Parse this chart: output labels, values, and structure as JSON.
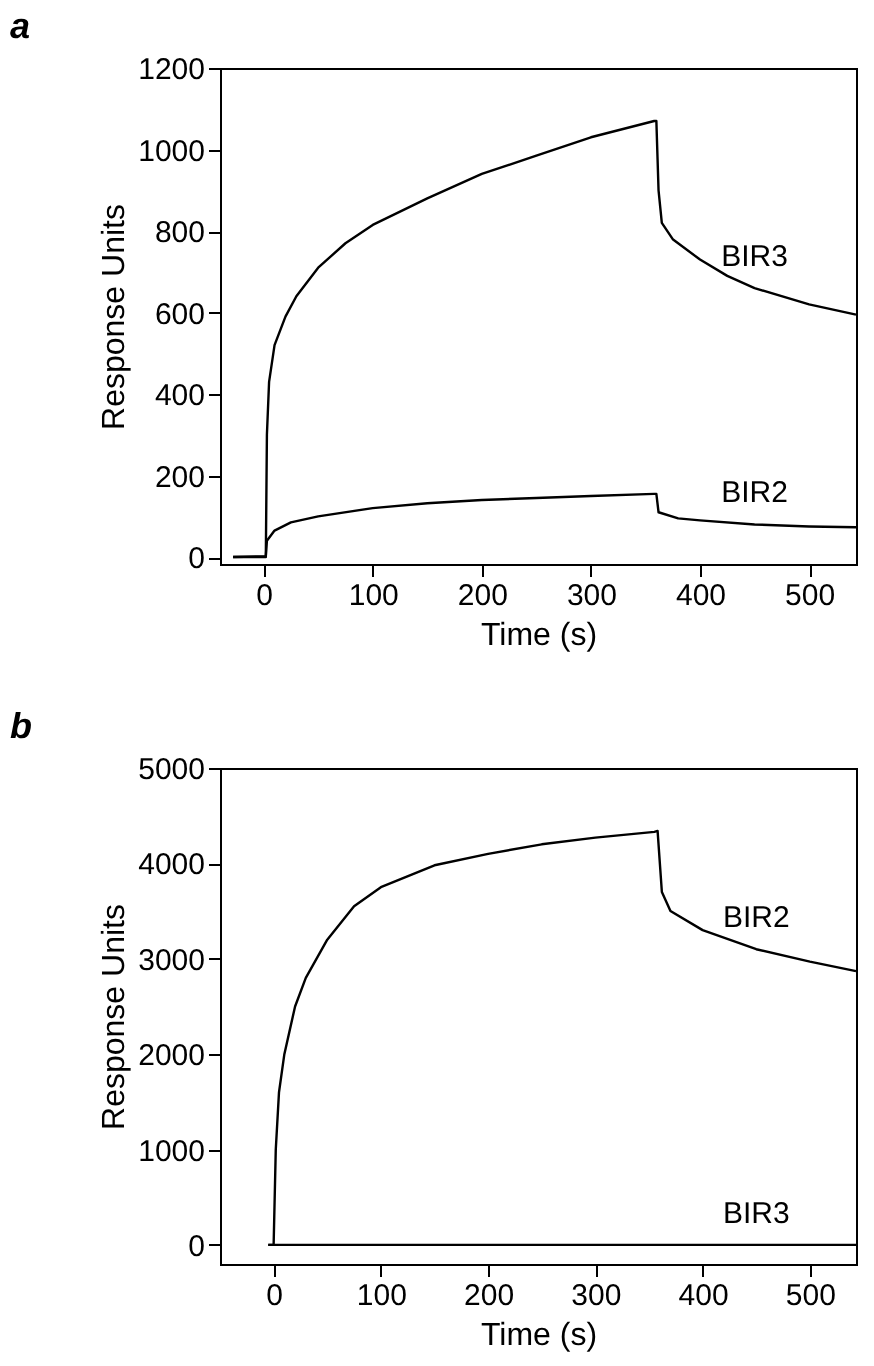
{
  "chart_data": [
    {
      "type": "line",
      "title": "a",
      "xlabel": "Time (s)",
      "ylabel": "Response Units",
      "xlim": [
        -40,
        543
      ],
      "ylim": [
        -17,
        1200
      ],
      "xticks": [
        0,
        100,
        200,
        300,
        400,
        500
      ],
      "yticks": [
        0,
        200,
        400,
        600,
        800,
        1000,
        1200
      ],
      "grid": false,
      "legend": false,
      "marker": "none",
      "line_style": "solid",
      "series": [
        {
          "name": "BIR3",
          "color": "#000000",
          "x": [
            -28,
            2,
            3,
            5,
            10,
            20,
            30,
            50,
            75,
            100,
            150,
            200,
            250,
            300,
            358,
            360,
            362,
            365,
            375,
            400,
            425,
            450,
            500,
            543
          ],
          "values": [
            0,
            0,
            300,
            430,
            520,
            590,
            640,
            710,
            770,
            815,
            880,
            940,
            985,
            1030,
            1070,
            1070,
            900,
            820,
            780,
            730,
            690,
            660,
            620,
            595
          ]
        },
        {
          "name": "BIR2",
          "color": "#000000",
          "x": [
            -28,
            2,
            3,
            10,
            25,
            50,
            100,
            150,
            200,
            250,
            300,
            358,
            360,
            362,
            380,
            400,
            450,
            500,
            543
          ],
          "values": [
            0,
            2,
            40,
            65,
            85,
            100,
            120,
            132,
            140,
            145,
            150,
            155,
            155,
            110,
            95,
            90,
            80,
            75,
            73
          ]
        }
      ]
    },
    {
      "type": "line",
      "title": "b",
      "xlabel": "Time (s)",
      "ylabel": "Response Units",
      "xlim": [
        -50,
        543
      ],
      "ylim": [
        -200,
        5000
      ],
      "xticks": [
        0,
        100,
        200,
        300,
        400,
        500
      ],
      "yticks": [
        0,
        1000,
        2000,
        3000,
        4000,
        5000
      ],
      "grid": false,
      "legend": false,
      "marker": "none",
      "line_style": "solid",
      "series": [
        {
          "name": "BIR2",
          "color": "#000000",
          "x": [
            -5,
            0,
            2,
            5,
            10,
            20,
            30,
            50,
            75,
            100,
            150,
            200,
            250,
            300,
            355,
            358,
            362,
            370,
            400,
            450,
            500,
            543
          ],
          "values": [
            0,
            0,
            1000,
            1600,
            2000,
            2500,
            2800,
            3200,
            3550,
            3750,
            3980,
            4100,
            4200,
            4270,
            4330,
            4340,
            3700,
            3500,
            3300,
            3100,
            2970,
            2870
          ]
        },
        {
          "name": "BIR3",
          "color": "#000000",
          "x": [
            -5,
            180,
            240,
            260,
            280,
            300,
            450,
            543
          ],
          "values": [
            0,
            0,
            0,
            0,
            0,
            0,
            0,
            0
          ]
        }
      ]
    }
  ]
}
